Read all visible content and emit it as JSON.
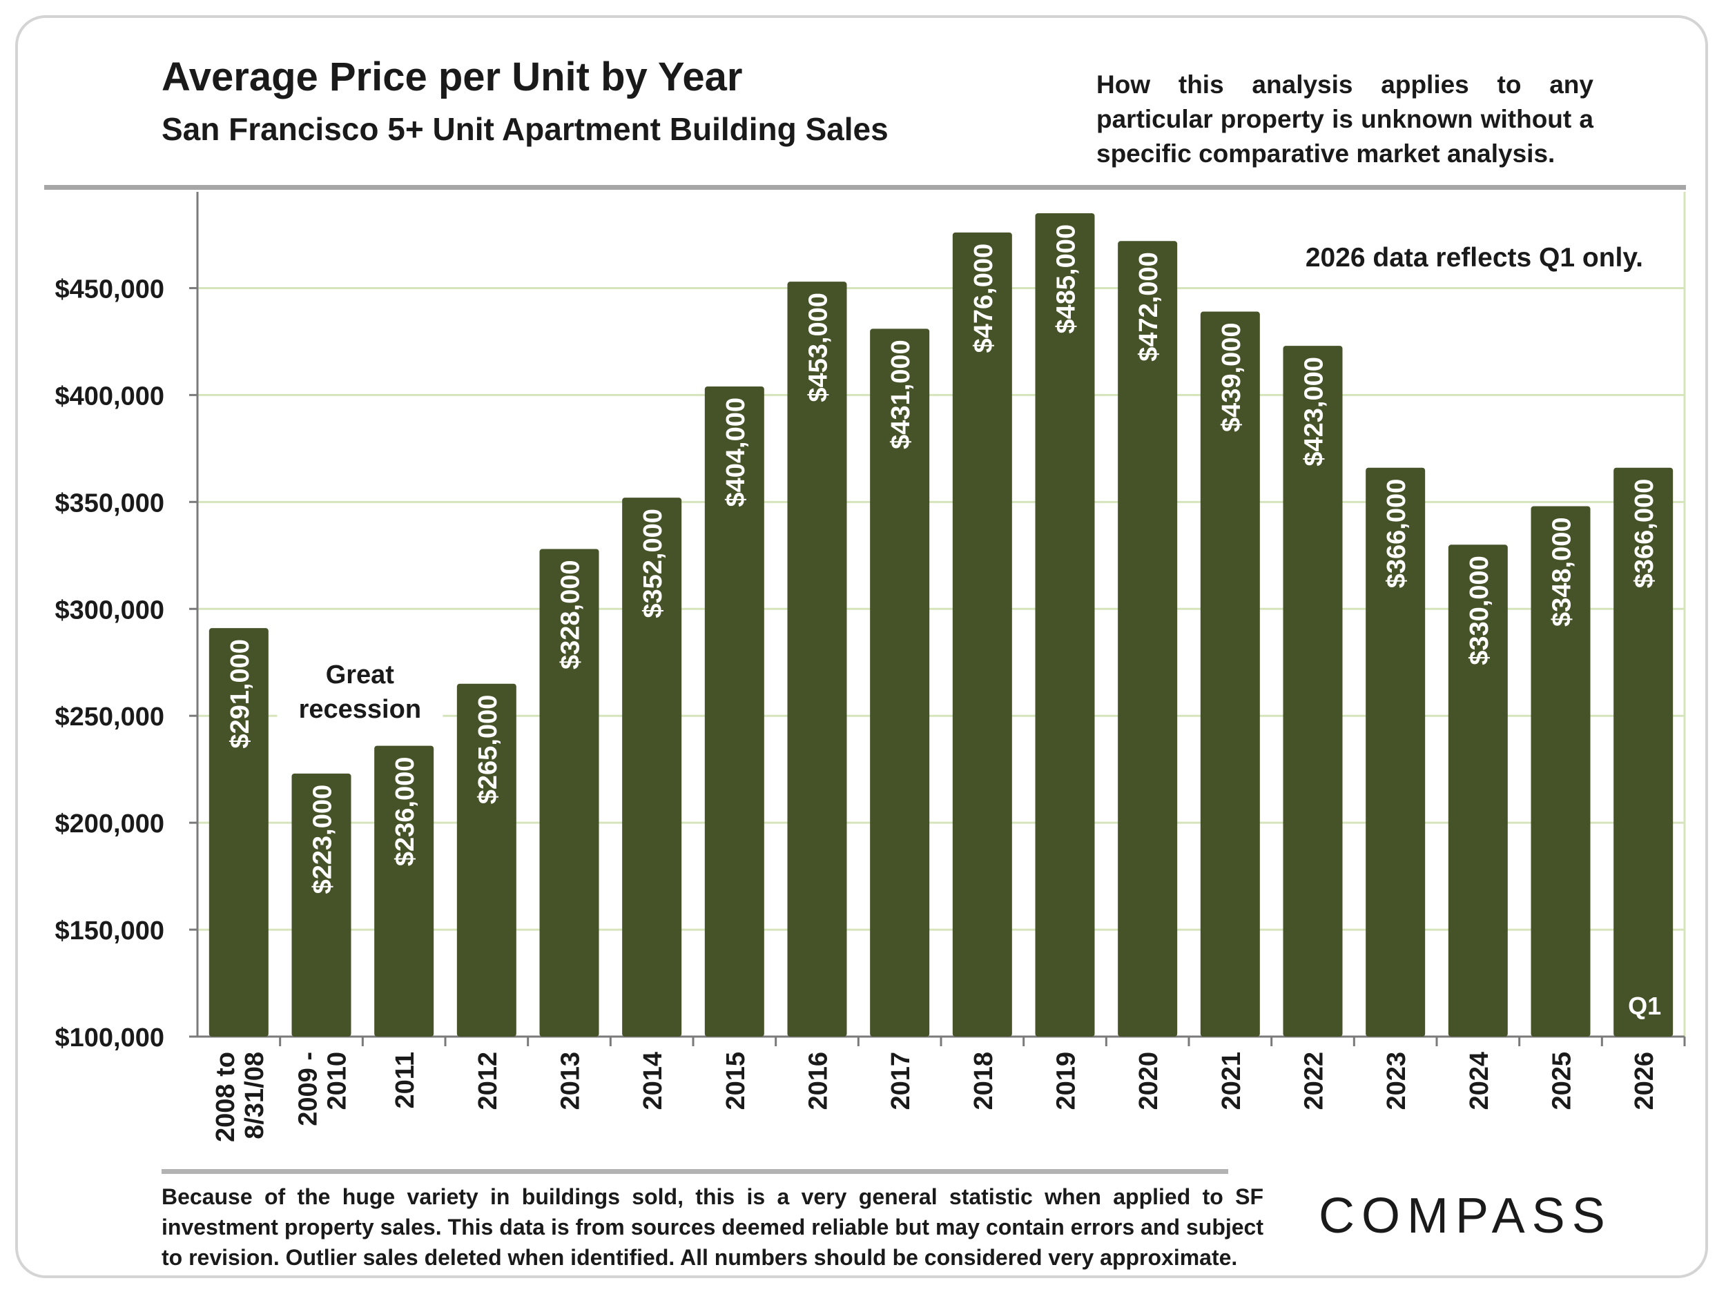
{
  "chart_data": {
    "type": "bar",
    "title": "Average Price per Unit by Year",
    "subtitle": "San Francisco 5+ Unit Apartment Building Sales",
    "categories": [
      [
        "2008 to",
        "8/31/08"
      ],
      [
        "2009 -",
        "2010"
      ],
      [
        "2011"
      ],
      [
        "2012"
      ],
      [
        "2013"
      ],
      [
        "2014"
      ],
      [
        "2015"
      ],
      [
        "2016"
      ],
      [
        "2017"
      ],
      [
        "2018"
      ],
      [
        "2019"
      ],
      [
        "2020"
      ],
      [
        "2021"
      ],
      [
        "2022"
      ],
      [
        "2023"
      ],
      [
        "2024"
      ],
      [
        "2025"
      ],
      [
        "2026"
      ]
    ],
    "values": [
      291000,
      223000,
      236000,
      265000,
      328000,
      352000,
      404000,
      453000,
      431000,
      476000,
      485000,
      472000,
      439000,
      423000,
      366000,
      330000,
      348000,
      366000
    ],
    "data_labels": [
      "$291,000",
      "$223,000",
      "$236,000",
      "$265,000",
      "$328,000",
      "$352,000",
      "$404,000",
      "$453,000",
      "$431,000",
      "$476,000",
      "$485,000",
      "$472,000",
      "$439,000",
      "$423,000",
      "$366,000",
      "$330,000",
      "$348,000",
      "$366,000"
    ],
    "ylim": [
      100000,
      495000
    ],
    "yticks": [
      100000,
      150000,
      200000,
      250000,
      300000,
      350000,
      400000,
      450000
    ],
    "ytick_labels": [
      "$100,000",
      "$150,000",
      "$200,000",
      "$250,000",
      "$300,000",
      "$350,000",
      "$400,000",
      "$450,000"
    ],
    "xlabel": "",
    "ylabel": "",
    "grid": true,
    "annotations": {
      "recession": [
        "Great",
        "recession"
      ],
      "q1_marker": "Q1"
    },
    "colors": {
      "bar": "#465228",
      "grid": "#d6e4bc",
      "axis": "#7a7a7a",
      "top_rule": "#a6a6a6",
      "bar_label": "#ffffff"
    }
  },
  "disclaimer": "How this analysis applies to any particular property is unknown without a specific comparative market analysis.",
  "note": "2026 data reflects Q1 only.",
  "footer": "Because of the huge variety in buildings sold, this is a very general statistic when applied to SF investment property sales. This data is from sources deemed reliable but may contain errors and subject to revision. Outlier sales deleted when identified. All numbers should be considered very approximate.",
  "logo": "COMPASS"
}
